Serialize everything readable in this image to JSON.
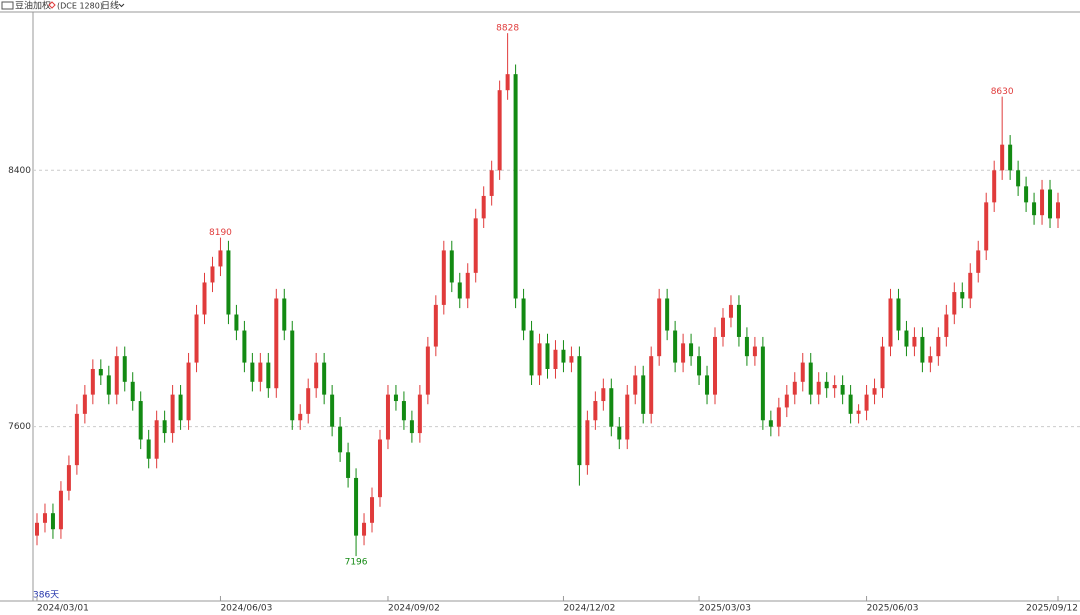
{
  "chart_data": {
    "type": "candlestick",
    "title": "豆油加权",
    "subtitle": "(DCE 1280)",
    "period": "日线",
    "span_label": "386天",
    "up_color": "#e03b3b",
    "down_color": "#138a13",
    "ylim": [
      7056,
      8894
    ],
    "yticks": [
      7600,
      8400
    ],
    "grid": true,
    "xticks": [
      {
        "value": 0,
        "label": "2024/03/01"
      },
      {
        "value": 23,
        "label": "2024/06/03"
      },
      {
        "value": 44,
        "label": "2024/09/02"
      },
      {
        "value": 66,
        "label": "2024/12/02"
      },
      {
        "value": 83,
        "label": "2025/03/03"
      },
      {
        "value": 104,
        "label": "2025/06/03"
      },
      {
        "value": 128,
        "label": "2025/09/12"
      }
    ],
    "candles": [
      [
        7260,
        7330,
        7230,
        7300
      ],
      [
        7300,
        7360,
        7270,
        7330
      ],
      [
        7330,
        7360,
        7250,
        7280
      ],
      [
        7280,
        7430,
        7250,
        7400
      ],
      [
        7400,
        7510,
        7370,
        7480
      ],
      [
        7480,
        7670,
        7450,
        7640
      ],
      [
        7640,
        7730,
        7610,
        7700
      ],
      [
        7700,
        7810,
        7670,
        7780
      ],
      [
        7780,
        7810,
        7730,
        7760
      ],
      [
        7760,
        7790,
        7670,
        7700
      ],
      [
        7700,
        7850,
        7670,
        7820
      ],
      [
        7820,
        7850,
        7710,
        7740
      ],
      [
        7740,
        7770,
        7650,
        7680
      ],
      [
        7680,
        7710,
        7530,
        7560
      ],
      [
        7560,
        7590,
        7470,
        7500
      ],
      [
        7500,
        7650,
        7470,
        7620
      ],
      [
        7620,
        7650,
        7550,
        7580
      ],
      [
        7580,
        7730,
        7550,
        7700
      ],
      [
        7700,
        7730,
        7590,
        7620
      ],
      [
        7620,
        7830,
        7590,
        7800
      ],
      [
        7800,
        7980,
        7770,
        7950
      ],
      [
        7950,
        8080,
        7920,
        8050
      ],
      [
        8050,
        8130,
        8020,
        8100
      ],
      [
        8100,
        8190,
        8070,
        8150
      ],
      [
        8150,
        8180,
        7920,
        7950
      ],
      [
        7950,
        7980,
        7870,
        7900
      ],
      [
        7900,
        7930,
        7770,
        7800
      ],
      [
        7800,
        7830,
        7710,
        7740
      ],
      [
        7740,
        7830,
        7710,
        7800
      ],
      [
        7800,
        7830,
        7690,
        7720
      ],
      [
        7720,
        8030,
        7690,
        8000
      ],
      [
        8000,
        8030,
        7870,
        7900
      ],
      [
        7900,
        7930,
        7590,
        7620
      ],
      [
        7620,
        7670,
        7590,
        7640
      ],
      [
        7640,
        7750,
        7610,
        7720
      ],
      [
        7720,
        7830,
        7690,
        7800
      ],
      [
        7800,
        7830,
        7670,
        7700
      ],
      [
        7700,
        7730,
        7570,
        7600
      ],
      [
        7600,
        7630,
        7490,
        7520
      ],
      [
        7520,
        7550,
        7410,
        7440
      ],
      [
        7440,
        7470,
        7196,
        7260
      ],
      [
        7260,
        7330,
        7230,
        7300
      ],
      [
        7300,
        7410,
        7270,
        7380
      ],
      [
        7380,
        7590,
        7350,
        7560
      ],
      [
        7560,
        7730,
        7530,
        7700
      ],
      [
        7700,
        7730,
        7650,
        7680
      ],
      [
        7680,
        7710,
        7590,
        7620
      ],
      [
        7620,
        7650,
        7550,
        7580
      ],
      [
        7580,
        7730,
        7550,
        7700
      ],
      [
        7700,
        7880,
        7670,
        7850
      ],
      [
        7850,
        8010,
        7820,
        7980
      ],
      [
        7980,
        8180,
        7950,
        8150
      ],
      [
        8150,
        8180,
        8020,
        8050
      ],
      [
        8050,
        8080,
        7970,
        8000
      ],
      [
        8000,
        8110,
        7970,
        8080
      ],
      [
        8080,
        8280,
        8050,
        8250
      ],
      [
        8250,
        8350,
        8220,
        8320
      ],
      [
        8320,
        8430,
        8290,
        8400
      ],
      [
        8400,
        8680,
        8370,
        8650
      ],
      [
        8650,
        8828,
        8620,
        8700
      ],
      [
        8700,
        8730,
        7970,
        8000
      ],
      [
        8000,
        8030,
        7870,
        7900
      ],
      [
        7900,
        7930,
        7730,
        7760
      ],
      [
        7760,
        7890,
        7730,
        7860
      ],
      [
        7860,
        7890,
        7750,
        7780
      ],
      [
        7780,
        7870,
        7750,
        7840
      ],
      [
        7840,
        7870,
        7770,
        7800
      ],
      [
        7800,
        7850,
        7770,
        7820
      ],
      [
        7820,
        7850,
        7416,
        7480
      ],
      [
        7480,
        7650,
        7450,
        7620
      ],
      [
        7620,
        7710,
        7590,
        7680
      ],
      [
        7680,
        7750,
        7650,
        7720
      ],
      [
        7720,
        7750,
        7570,
        7600
      ],
      [
        7600,
        7630,
        7530,
        7560
      ],
      [
        7560,
        7730,
        7530,
        7700
      ],
      [
        7700,
        7790,
        7670,
        7760
      ],
      [
        7760,
        7790,
        7610,
        7640
      ],
      [
        7640,
        7850,
        7610,
        7820
      ],
      [
        7820,
        8030,
        7790,
        8000
      ],
      [
        8000,
        8030,
        7870,
        7900
      ],
      [
        7900,
        7930,
        7770,
        7800
      ],
      [
        7800,
        7890,
        7770,
        7860
      ],
      [
        7860,
        7890,
        7790,
        7820
      ],
      [
        7820,
        7850,
        7730,
        7760
      ],
      [
        7760,
        7790,
        7670,
        7700
      ],
      [
        7700,
        7910,
        7670,
        7880
      ],
      [
        7880,
        7970,
        7850,
        7940
      ],
      [
        7940,
        8010,
        7910,
        7980
      ],
      [
        7980,
        8010,
        7850,
        7880
      ],
      [
        7880,
        7910,
        7790,
        7820
      ],
      [
        7820,
        7880,
        7790,
        7850
      ],
      [
        7850,
        7880,
        7590,
        7620
      ],
      [
        7620,
        7650,
        7570,
        7600
      ],
      [
        7600,
        7690,
        7570,
        7660
      ],
      [
        7660,
        7730,
        7630,
        7700
      ],
      [
        7700,
        7770,
        7670,
        7740
      ],
      [
        7740,
        7830,
        7710,
        7800
      ],
      [
        7800,
        7830,
        7670,
        7700
      ],
      [
        7700,
        7770,
        7670,
        7740
      ],
      [
        7740,
        7770,
        7690,
        7720
      ],
      [
        7720,
        7760,
        7690,
        7730
      ],
      [
        7730,
        7760,
        7670,
        7700
      ],
      [
        7700,
        7730,
        7610,
        7640
      ],
      [
        7640,
        7670,
        7610,
        7650
      ],
      [
        7650,
        7730,
        7620,
        7700
      ],
      [
        7700,
        7750,
        7670,
        7720
      ],
      [
        7720,
        7880,
        7690,
        7850
      ],
      [
        7850,
        8030,
        7820,
        8000
      ],
      [
        8000,
        8030,
        7870,
        7900
      ],
      [
        7900,
        7930,
        7820,
        7850
      ],
      [
        7850,
        7910,
        7820,
        7880
      ],
      [
        7880,
        7910,
        7770,
        7800
      ],
      [
        7800,
        7850,
        7770,
        7820
      ],
      [
        7820,
        7910,
        7790,
        7880
      ],
      [
        7880,
        7980,
        7850,
        7950
      ],
      [
        7950,
        8050,
        7920,
        8020
      ],
      [
        8020,
        8050,
        7970,
        8000
      ],
      [
        8000,
        8110,
        7970,
        8080
      ],
      [
        8080,
        8180,
        8050,
        8150
      ],
      [
        8150,
        8330,
        8120,
        8300
      ],
      [
        8300,
        8430,
        8270,
        8400
      ],
      [
        8400,
        8630,
        8370,
        8480
      ],
      [
        8480,
        8510,
        8370,
        8400
      ],
      [
        8400,
        8430,
        8320,
        8350
      ],
      [
        8350,
        8380,
        8270,
        8300
      ],
      [
        8300,
        8330,
        8230,
        8260
      ],
      [
        8260,
        8370,
        8230,
        8340
      ],
      [
        8340,
        8370,
        8220,
        8250
      ],
      [
        8250,
        8330,
        8220,
        8300
      ]
    ]
  }
}
